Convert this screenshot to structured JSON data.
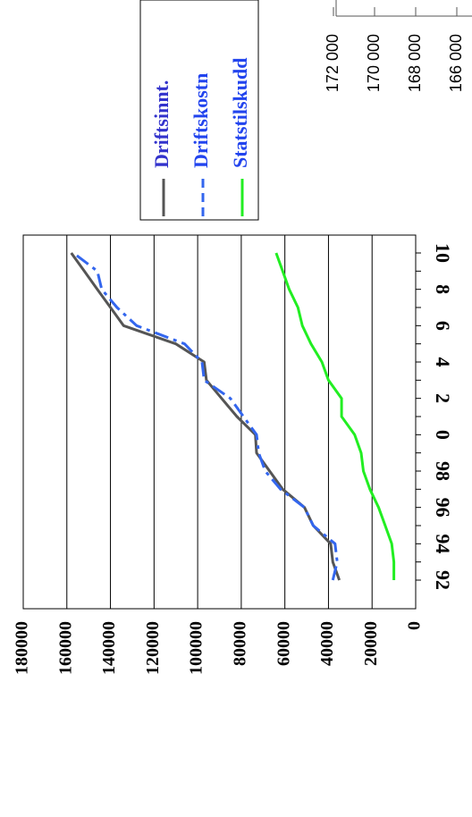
{
  "chart_data": [
    {
      "type": "line",
      "orientation": "rotated-90-clockwise",
      "categories": [
        "92",
        "93",
        "94",
        "95",
        "96",
        "97",
        "98",
        "99",
        "0",
        "1",
        "2",
        "3",
        "4",
        "5",
        "6",
        "7",
        "8",
        "9",
        "10"
      ],
      "x_tick_labels": [
        "92",
        "94",
        "96",
        "98",
        "0",
        "2",
        "4",
        "6",
        "8",
        "10"
      ],
      "y_tick_labels": [
        "0",
        "20000",
        "40000",
        "60000",
        "80000",
        "100000",
        "120000",
        "140000",
        "160000",
        "180000"
      ],
      "ylim": [
        0,
        180000
      ],
      "grid": true,
      "legend_position": "top-right",
      "series": [
        {
          "name": "Driftsinnt.",
          "color": "#555555",
          "dash": "solid",
          "values": [
            35000,
            38000,
            39000,
            47000,
            51000,
            61000,
            67000,
            73000,
            73500,
            82000,
            89000,
            96000,
            97000,
            110000,
            134000,
            140000,
            146000,
            152000,
            158000
          ]
        },
        {
          "name": "Driftskostn",
          "color": "#3366ee",
          "dash": "dashed",
          "values": [
            38000,
            36000,
            37000,
            47000,
            51000,
            62000,
            69000,
            72000,
            73000,
            79000,
            85000,
            97000,
            98000,
            106000,
            128000,
            137000,
            144000,
            146000,
            157000
          ]
        },
        {
          "name": "Statstilskudd",
          "color": "#22ee22",
          "dash": "solid",
          "values": [
            10000,
            10000,
            11000,
            14000,
            17000,
            21000,
            24000,
            25000,
            28000,
            34000,
            34000,
            40000,
            43000,
            48000,
            52000,
            54000,
            58000,
            61000,
            64000
          ]
        }
      ]
    },
    {
      "type": "line",
      "orientation": "rotated-90-clockwise",
      "partial": true,
      "y_tick_labels": [
        "166 000",
        "168 000",
        "170 000",
        "172 000"
      ]
    }
  ]
}
